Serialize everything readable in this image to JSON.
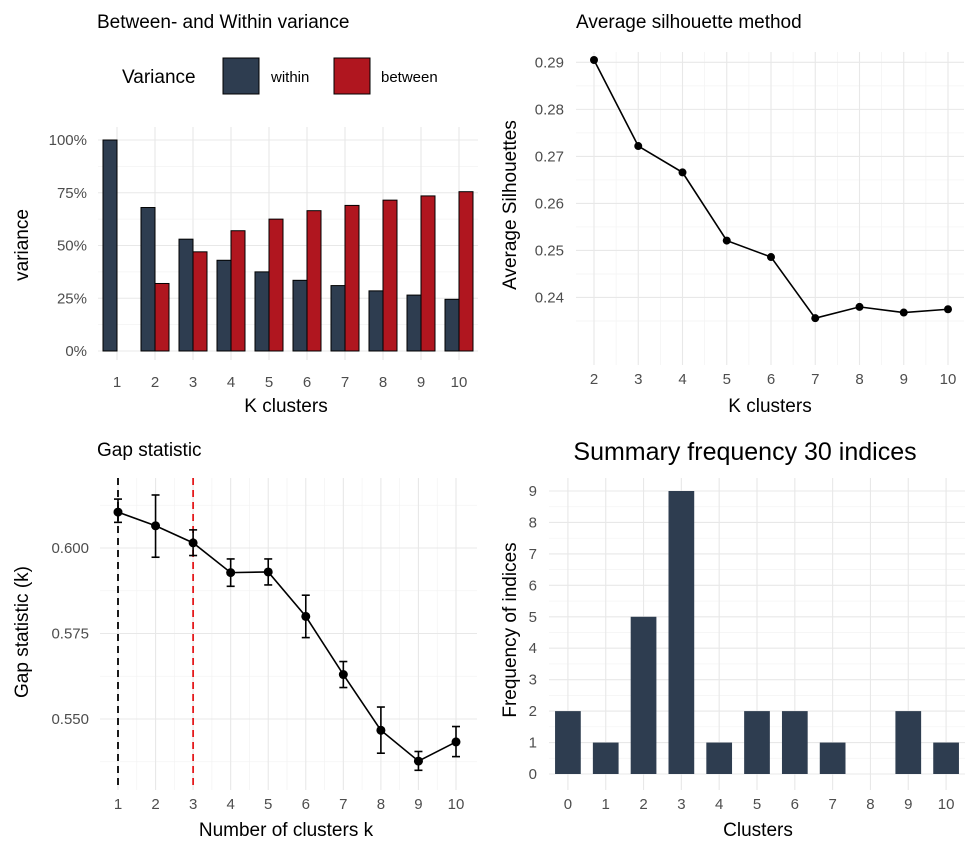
{
  "chart_data": [
    {
      "id": "variance",
      "type": "bar",
      "title": "Between- and Within variance",
      "xlabel": "K clusters",
      "ylabel": "variance",
      "categories": [
        "1",
        "2",
        "3",
        "4",
        "5",
        "6",
        "7",
        "8",
        "9",
        "10"
      ],
      "ylim": [
        0,
        1
      ],
      "yticks": [
        0,
        0.25,
        0.5,
        0.75,
        1
      ],
      "ytick_labels": [
        "0%",
        "25%",
        "50%",
        "75%",
        "100%"
      ],
      "legend": {
        "title": "Variance",
        "position": "top"
      },
      "series": [
        {
          "name": "within",
          "color": "#2e3d50",
          "values": [
            1.0,
            0.68,
            0.53,
            0.43,
            0.375,
            0.335,
            0.31,
            0.285,
            0.265,
            0.245
          ]
        },
        {
          "name": "between",
          "color": "#b0161f",
          "values": [
            0.0,
            0.32,
            0.47,
            0.57,
            0.625,
            0.665,
            0.69,
            0.715,
            0.735,
            0.755
          ]
        }
      ]
    },
    {
      "id": "silhouette",
      "type": "line",
      "title": "Average silhouette method",
      "xlabel": "K clusters",
      "ylabel": "Average Silhouettes",
      "x": [
        2,
        3,
        4,
        5,
        6,
        7,
        8,
        9,
        10
      ],
      "y": [
        0.2905,
        0.2722,
        0.2666,
        0.2521,
        0.2486,
        0.2356,
        0.238,
        0.2368,
        0.2375
      ],
      "xlim": [
        2,
        10
      ],
      "ylim": [
        0.235,
        0.2905
      ],
      "yticks": [
        0.24,
        0.25,
        0.26,
        0.27,
        0.28,
        0.29
      ],
      "ytick_labels": [
        "0.24",
        "0.25",
        "0.26",
        "0.27",
        "0.28",
        "0.29"
      ],
      "xtick_labels": [
        "2",
        "3",
        "4",
        "5",
        "6",
        "7",
        "8",
        "9",
        "10"
      ]
    },
    {
      "id": "gap",
      "type": "line",
      "title": "Gap statistic",
      "xlabel": "Number of clusters k",
      "ylabel": "Gap statistic (k)",
      "x": [
        1,
        2,
        3,
        4,
        5,
        6,
        7,
        8,
        9,
        10
      ],
      "y": [
        0.6105,
        0.6065,
        0.6015,
        0.5928,
        0.593,
        0.58,
        0.563,
        0.5467,
        0.5377,
        0.5433
      ],
      "error_low": [
        0.6075,
        0.5973,
        0.5978,
        0.5888,
        0.5892,
        0.5738,
        0.5592,
        0.54,
        0.535,
        0.539
      ],
      "error_high": [
        0.6143,
        0.6155,
        0.6053,
        0.5968,
        0.5968,
        0.5862,
        0.5668,
        0.5535,
        0.5405,
        0.5478
      ],
      "xlim": [
        1,
        10
      ],
      "ylim": [
        0.535,
        0.618
      ],
      "yticks": [
        0.55,
        0.575,
        0.6
      ],
      "ytick_labels": [
        "0.550",
        "0.575",
        "0.600"
      ],
      "xtick_labels": [
        "1",
        "2",
        "3",
        "4",
        "5",
        "6",
        "7",
        "8",
        "9",
        "10"
      ],
      "vlines": [
        {
          "x": 1,
          "color": "#000000"
        },
        {
          "x": 3,
          "color": "#e41a1c"
        }
      ]
    },
    {
      "id": "frequency",
      "type": "bar",
      "title": "Summary frequency 30 indices",
      "xlabel": "Clusters",
      "ylabel": "Frequency of indices",
      "categories": [
        "0",
        "1",
        "2",
        "3",
        "4",
        "5",
        "6",
        "7",
        "8",
        "9",
        "10"
      ],
      "values": [
        2,
        1,
        5,
        9,
        1,
        2,
        2,
        1,
        0,
        2,
        1
      ],
      "color": "#2e3d50",
      "ylim": [
        0,
        9
      ],
      "yticks": [
        0,
        1,
        2,
        3,
        4,
        5,
        6,
        7,
        8,
        9
      ],
      "ytick_labels": [
        "0",
        "1",
        "2",
        "3",
        "4",
        "5",
        "6",
        "7",
        "8",
        "9"
      ]
    }
  ]
}
